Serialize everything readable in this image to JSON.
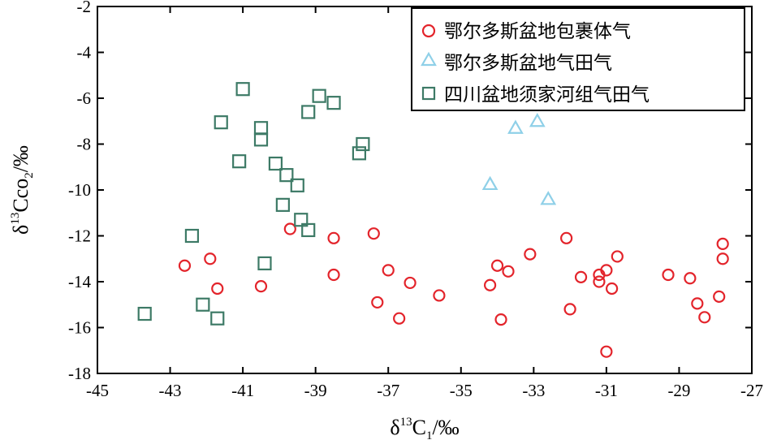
{
  "chart_data": {
    "type": "scatter",
    "xlabel": {
      "symbol": "δ",
      "sup": "13",
      "main": "C",
      "sub": "1",
      "unit": "/‰"
    },
    "ylabel": {
      "symbol": "δ",
      "sup": "13",
      "main": "Cco",
      "sub": "2",
      "unit": "/‰"
    },
    "xlim": [
      -45,
      -27
    ],
    "ylim": [
      -18,
      -2
    ],
    "xticks": [
      -45,
      -43,
      -41,
      -39,
      -37,
      -35,
      -33,
      -31,
      -29,
      -27
    ],
    "yticks": [
      -2,
      -4,
      -6,
      -8,
      -10,
      -12,
      -14,
      -16,
      -18
    ],
    "grid": false,
    "legend_position": "top-right",
    "colors": {
      "red": "#e3242b",
      "blue": "#8fd0e8",
      "green": "#3d7a66"
    },
    "series": [
      {
        "name": "鄂尔多斯盆地包裹体气",
        "marker": "circle",
        "color": "#e3242b",
        "points": [
          [
            -42.6,
            -13.3
          ],
          [
            -41.9,
            -13.0
          ],
          [
            -41.7,
            -14.3
          ],
          [
            -40.5,
            -14.2
          ],
          [
            -39.7,
            -11.7
          ],
          [
            -38.5,
            -12.1
          ],
          [
            -38.5,
            -13.7
          ],
          [
            -37.4,
            -11.9
          ],
          [
            -37.3,
            -14.9
          ],
          [
            -37.0,
            -13.5
          ],
          [
            -36.7,
            -15.6
          ],
          [
            -36.4,
            -14.05
          ],
          [
            -35.6,
            -14.6
          ],
          [
            -34.2,
            -14.15
          ],
          [
            -34.0,
            -13.3
          ],
          [
            -33.9,
            -15.65
          ],
          [
            -33.7,
            -13.55
          ],
          [
            -33.1,
            -12.8
          ],
          [
            -32.1,
            -12.1
          ],
          [
            -32.0,
            -15.2
          ],
          [
            -31.7,
            -13.8
          ],
          [
            -31.2,
            -13.7
          ],
          [
            -31.2,
            -14.0
          ],
          [
            -31.0,
            -13.5
          ],
          [
            -31.0,
            -17.05
          ],
          [
            -30.85,
            -14.3
          ],
          [
            -30.7,
            -12.9
          ],
          [
            -29.3,
            -13.7
          ],
          [
            -28.7,
            -13.85
          ],
          [
            -28.5,
            -14.95
          ],
          [
            -28.3,
            -15.55
          ],
          [
            -27.9,
            -14.65
          ],
          [
            -27.8,
            -12.35
          ],
          [
            -27.8,
            -13.0
          ]
        ]
      },
      {
        "name": "鄂尔多斯盆地气田气",
        "marker": "triangle",
        "color": "#8fd0e8",
        "points": [
          [
            -34.2,
            -9.75
          ],
          [
            -33.5,
            -7.3
          ],
          [
            -32.9,
            -7.0
          ],
          [
            -32.6,
            -10.4
          ]
        ]
      },
      {
        "name": "四川盆地须家河组气田气",
        "marker": "square",
        "color": "#3d7a66",
        "points": [
          [
            -43.7,
            -15.4
          ],
          [
            -42.4,
            -12.0
          ],
          [
            -42.1,
            -15.0
          ],
          [
            -41.7,
            -15.6
          ],
          [
            -41.6,
            -7.05
          ],
          [
            -41.1,
            -8.75
          ],
          [
            -41.0,
            -5.6
          ],
          [
            -40.5,
            -7.3
          ],
          [
            -40.5,
            -7.8
          ],
          [
            -40.4,
            -13.2
          ],
          [
            -40.1,
            -8.85
          ],
          [
            -39.9,
            -10.65
          ],
          [
            -39.8,
            -9.35
          ],
          [
            -39.5,
            -9.8
          ],
          [
            -39.4,
            -11.3
          ],
          [
            -39.2,
            -11.75
          ],
          [
            -39.2,
            -6.6
          ],
          [
            -38.9,
            -5.9
          ],
          [
            -38.5,
            -6.2
          ],
          [
            -37.8,
            -8.4
          ],
          [
            -37.7,
            -8.0
          ]
        ]
      }
    ]
  }
}
